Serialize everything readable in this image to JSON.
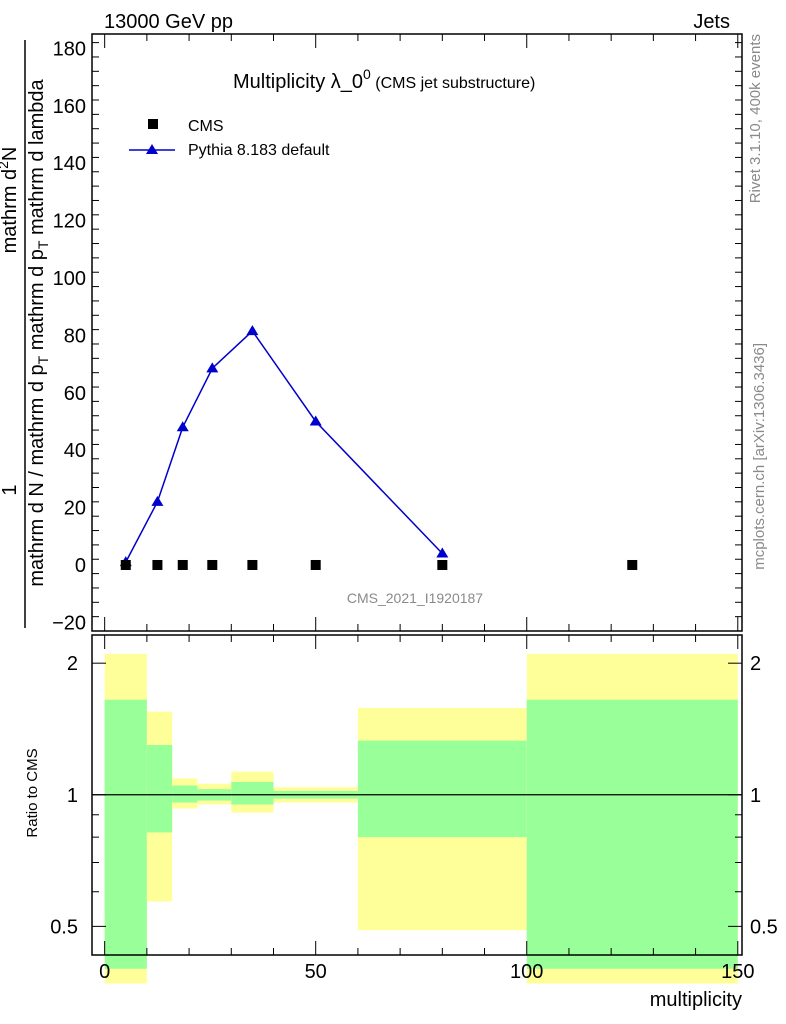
{
  "header": {
    "left": "13000 GeV pp",
    "right": "Jets"
  },
  "side": {
    "rivet": "Rivet 3.1.10,  400k events",
    "mcplots": "mcplots.cern.ch [arXiv:1306.3436]"
  },
  "watermark": "CMS_2021_I1920187",
  "title": {
    "main": "Multiplicity λ_0",
    "sup": "0",
    "sub": " (CMS jet substructure)"
  },
  "ylabel_main": {
    "numer": "mathrm d²N",
    "denom": "mathrm d N / mathrm d p_T mathrm d p_T mathrm d lambda"
  },
  "ylabel_ratio": "Ratio to CMS",
  "xlabel": "multiplicity",
  "legend": [
    {
      "label": "CMS",
      "marker": "square",
      "color": "#000000"
    },
    {
      "label": "Pythia 8.183 default",
      "marker": "triangle",
      "color": "#0000cc"
    }
  ],
  "colors": {
    "mc": "#0000cc",
    "data": "#000000",
    "band_inner": "#99ff99",
    "band_outer": "#ffff99"
  },
  "chart_data": {
    "type": "scatter",
    "title": "Multiplicity λ_0^0 (CMS jet substructure)",
    "xlabel": "multiplicity",
    "xlim": [
      -3,
      151
    ],
    "x_ticks": [
      0,
      50,
      100,
      150
    ],
    "main_panel": {
      "ylim": [
        -23,
        185
      ],
      "y_ticks": [
        -20,
        0,
        20,
        40,
        60,
        80,
        100,
        120,
        140,
        160,
        180
      ],
      "series": [
        {
          "name": "CMS",
          "marker": "square",
          "x": [
            5,
            12.5,
            18.5,
            25.5,
            35,
            50,
            80,
            125
          ],
          "y": [
            0,
            0,
            0,
            0,
            0,
            0,
            0,
            0
          ]
        },
        {
          "name": "Pythia 8.183 default",
          "marker": "triangle",
          "x": [
            5,
            12.5,
            18.5,
            25.5,
            35,
            50,
            80
          ],
          "y": [
            1,
            22,
            48,
            68.5,
            81.5,
            50,
            4
          ]
        }
      ]
    },
    "ratio_panel": {
      "ylabel": "Ratio to CMS",
      "yscale": "log",
      "ylim": [
        0.43,
        2.32
      ],
      "y_ticks": [
        0.5,
        1,
        2
      ],
      "bins": [
        {
          "x0": 0,
          "x1": 10,
          "inner": [
            0.4,
            1.65
          ],
          "outer": [
            0.37,
            2.1
          ]
        },
        {
          "x0": 10,
          "x1": 16,
          "inner": [
            0.82,
            1.3
          ],
          "outer": [
            0.57,
            1.55
          ]
        },
        {
          "x0": 16,
          "x1": 22,
          "inner": [
            0.96,
            1.05
          ],
          "outer": [
            0.93,
            1.09
          ]
        },
        {
          "x0": 22,
          "x1": 30,
          "inner": [
            0.97,
            1.03
          ],
          "outer": [
            0.95,
            1.06
          ]
        },
        {
          "x0": 30,
          "x1": 40,
          "inner": [
            0.95,
            1.07
          ],
          "outer": [
            0.91,
            1.13
          ]
        },
        {
          "x0": 40,
          "x1": 60,
          "inner": [
            0.98,
            1.02
          ],
          "outer": [
            0.96,
            1.04
          ]
        },
        {
          "x0": 60,
          "x1": 100,
          "inner": [
            0.8,
            1.33
          ],
          "outer": [
            0.49,
            1.58
          ]
        },
        {
          "x0": 100,
          "x1": 150,
          "inner": [
            0.4,
            1.65
          ],
          "outer": [
            0.37,
            2.1
          ]
        }
      ],
      "reference": 1
    }
  }
}
